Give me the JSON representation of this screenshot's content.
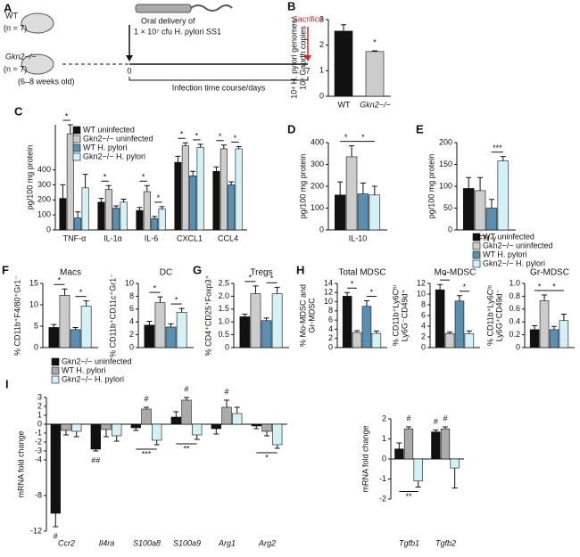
{
  "panel_a": {
    "panel": "A",
    "groups": [
      {
        "name": "WT",
        "n": "(n = 7)"
      },
      {
        "name": "Gkn2−/−",
        "n": "(n = 7)"
      }
    ],
    "age": "(6–8 weeks old)",
    "delivery": [
      "Oral delivery of",
      "1 × 10⁷ cfu H. pylori SS1"
    ],
    "sacrifice": "Sacrifice",
    "start": "0",
    "end": "7",
    "axis": "Infection time course/days"
  },
  "chart_data": [
    {
      "panel": "B",
      "type": "bar",
      "ylabel": [
        "10⁴ H. pylori genomes/",
        "10⁵ Gapdh copies"
      ],
      "categories": [
        "WT",
        "Gkn2−/−"
      ],
      "series": [
        {
          "color": "#111111",
          "values": [
            2.55,
            null
          ],
          "errors": [
            0.25,
            null
          ]
        },
        {
          "color": "#cccccc",
          "values": [
            null,
            1.75
          ],
          "errors": [
            null,
            0.03
          ]
        }
      ],
      "ylim": [
        0,
        3
      ],
      "yticks": [
        0,
        1,
        2,
        3
      ],
      "annotations": [
        "*"
      ]
    },
    {
      "panel": "C",
      "type": "bar",
      "ylabel": [
        "pg/100 mg protein"
      ],
      "categories": [
        "TNF-α",
        "IL-1α",
        "IL-6",
        "CXCL1",
        "CCL4"
      ],
      "legend": true,
      "series": [
        {
          "name": "WT uninfected",
          "color": "#111111",
          "values": [
            210,
            185,
            130,
            450,
            390
          ],
          "errors": [
            90,
            25,
            20,
            40,
            30
          ]
        },
        {
          "name": "Gkn2−/− uninfected",
          "color": "#cccccc",
          "values": [
            640,
            270,
            255,
            560,
            540
          ],
          "errors": [
            60,
            25,
            40,
            20,
            25
          ]
        },
        {
          "name": "WT H. pylori",
          "color": "#5b8fb0",
          "values": [
            80,
            145,
            75,
            360,
            300
          ],
          "errors": [
            40,
            15,
            15,
            30,
            20
          ]
        },
        {
          "name": "Gkn2−/− H. pylori",
          "color": "#d4f1f6",
          "values": [
            280,
            185,
            140,
            550,
            540
          ],
          "errors": [
            90,
            20,
            15,
            20,
            15
          ]
        }
      ],
      "ylim": [
        0,
        700
      ],
      "yticks": [
        0,
        100,
        200,
        300,
        400
      ],
      "annotations": [
        "*",
        "*",
        "*",
        "*",
        "*",
        "*",
        "*",
        "*"
      ]
    },
    {
      "panel": "D",
      "type": "bar",
      "ylabel": [
        "pg/100 mg protein"
      ],
      "categories": [
        "IL-10"
      ],
      "series": [
        {
          "color": "#111111",
          "values": [
            160
          ],
          "errors": [
            60
          ]
        },
        {
          "color": "#cccccc",
          "values": [
            335
          ],
          "errors": [
            50
          ]
        },
        {
          "color": "#5b8fb0",
          "values": [
            165
          ],
          "errors": [
            50
          ]
        },
        {
          "color": "#d4f1f6",
          "values": [
            160
          ],
          "errors": [
            40
          ]
        }
      ],
      "ylim": [
        0,
        400
      ],
      "yticks": [
        0,
        100,
        200,
        300,
        400
      ],
      "annotations": [
        "*",
        "*"
      ]
    },
    {
      "panel": "E",
      "type": "bar",
      "ylabel": [
        "pg/100 mg protein"
      ],
      "categories": [
        "IFN-γ"
      ],
      "series": [
        {
          "color": "#111111",
          "values": [
            95
          ],
          "errors": [
            25
          ]
        },
        {
          "color": "#cccccc",
          "values": [
            90
          ],
          "errors": [
            30
          ]
        },
        {
          "color": "#5b8fb0",
          "values": [
            50
          ],
          "errors": [
            20
          ]
        },
        {
          "color": "#d4f1f6",
          "values": [
            158
          ],
          "errors": [
            10
          ]
        }
      ],
      "ylim": [
        0,
        200
      ],
      "yticks": [
        0,
        50,
        100,
        150,
        200
      ],
      "annotations": [
        "***"
      ]
    },
    {
      "panel": "F",
      "type": "bar",
      "title": "Macs",
      "ylabel": [
        "% CD11b⁺F4/80⁺Gr1⁻"
      ],
      "series": [
        {
          "color": "#111111",
          "values": [
            4.7
          ],
          "errors": [
            0.7
          ]
        },
        {
          "color": "#cccccc",
          "values": [
            12.2
          ],
          "errors": [
            1.5
          ]
        },
        {
          "color": "#5b8fb0",
          "values": [
            4.2
          ],
          "errors": [
            0.5
          ]
        },
        {
          "color": "#d4f1f6",
          "values": [
            9.7
          ],
          "errors": [
            1.2
          ]
        }
      ],
      "ylim": [
        0,
        15
      ],
      "yticks": [
        0,
        5,
        10,
        15
      ],
      "annotations": [
        "*",
        "*"
      ]
    },
    {
      "type": "bar",
      "title": "DC",
      "ylabel": [
        "% CD11b⁺CD11c⁺Gr1⁻"
      ],
      "series": [
        {
          "color": "#111111",
          "values": [
            3.5
          ],
          "errors": [
            0.6
          ]
        },
        {
          "color": "#cccccc",
          "values": [
            7.0
          ],
          "errors": [
            0.9
          ]
        },
        {
          "color": "#5b8fb0",
          "values": [
            3.2
          ],
          "errors": [
            0.5
          ]
        },
        {
          "color": "#d4f1f6",
          "values": [
            5.5
          ],
          "errors": [
            0.6
          ]
        }
      ],
      "ylim": [
        0,
        10
      ],
      "yticks": [
        0,
        2,
        4,
        6,
        8,
        10
      ],
      "annotations": [
        "*",
        "*"
      ]
    },
    {
      "panel": "G",
      "type": "bar",
      "title": "Tregs",
      "ylabel": [
        "% CD4⁺CD25⁺Foxp3⁺"
      ],
      "series": [
        {
          "color": "#111111",
          "values": [
            1.2
          ],
          "errors": [
            0.1
          ]
        },
        {
          "color": "#cccccc",
          "values": [
            2.1
          ],
          "errors": [
            0.3
          ]
        },
        {
          "color": "#5b8fb0",
          "values": [
            1.05
          ],
          "errors": [
            0.1
          ]
        },
        {
          "color": "#d4f1f6",
          "values": [
            2.1
          ],
          "errors": [
            0.25
          ]
        }
      ],
      "ylim": [
        0,
        2.5
      ],
      "yticks": [
        0,
        0.5,
        {
          "value": 1,
          "label": "1.0"
        },
        1.5,
        {
          "value": 2,
          "label": "2.0"
        },
        2.5
      ],
      "annotations": [
        "*",
        "*"
      ]
    },
    {
      "panel": "H",
      "type": "bar",
      "title": "Total MDSC",
      "ylabel": [
        "% Mo-MDSC and",
        "Gr-MDSC"
      ],
      "legend": true,
      "series": [
        {
          "name": "WT uninfected",
          "color": "#111111",
          "values": [
            11.2
          ],
          "errors": [
            0.8
          ]
        },
        {
          "name": "Gkn2−/− uninfected",
          "color": "#cccccc",
          "values": [
            3.3
          ],
          "errors": [
            0.4
          ]
        },
        {
          "name": "WT H. pylori",
          "color": "#5b8fb0",
          "values": [
            9.0
          ],
          "errors": [
            1.2
          ]
        },
        {
          "name": "Gkn2−/− H. pylori",
          "color": "#d4f1f6",
          "values": [
            3.1
          ],
          "errors": [
            0.5
          ]
        }
      ],
      "ylim": [
        0,
        14
      ],
      "yticks": [
        0,
        2,
        4,
        6,
        8,
        10,
        12,
        14
      ],
      "annotations": [
        "*",
        "*"
      ]
    },
    {
      "type": "bar",
      "title": "Mo-MDSC",
      "ylabel": [
        "% CD11b⁺Ly6Cʰⁱ",
        "Ly6G⁻CD49d⁺"
      ],
      "series": [
        {
          "color": "#111111",
          "values": [
            10.8
          ],
          "errors": [
            1.0
          ]
        },
        {
          "color": "#cccccc",
          "values": [
            2.6
          ],
          "errors": [
            0.3
          ]
        },
        {
          "color": "#5b8fb0",
          "values": [
            8.7
          ],
          "errors": [
            1.0
          ]
        },
        {
          "color": "#d4f1f6",
          "values": [
            2.6
          ],
          "errors": [
            0.5
          ]
        }
      ],
      "ylim": [
        0,
        12
      ],
      "yticks": [
        0,
        2,
        4,
        6,
        8,
        10,
        12
      ],
      "annotations": [
        "*",
        "*"
      ]
    },
    {
      "type": "bar",
      "title": "Gr-MDSC",
      "ylabel": [
        "% CD11b⁺Ly6Cˡᵒ",
        "Ly6G⁺CD49d⁻"
      ],
      "series": [
        {
          "color": "#111111",
          "values": [
            0.28
          ],
          "errors": [
            0.06
          ]
        },
        {
          "color": "#cccccc",
          "values": [
            0.73
          ],
          "errors": [
            0.09
          ]
        },
        {
          "color": "#5b8fb0",
          "values": [
            0.28
          ],
          "errors": [
            0.05
          ]
        },
        {
          "color": "#d4f1f6",
          "values": [
            0.42
          ],
          "errors": [
            0.1
          ]
        }
      ],
      "ylim": [
        0,
        1
      ],
      "yticks": [
        0,
        0.2,
        0.4,
        0.6,
        0.8,
        {
          "value": 1,
          "label": "1.0"
        }
      ],
      "annotations": [
        "*",
        "*"
      ]
    },
    {
      "panel": "I",
      "type": "bar",
      "ylabel": [
        "mRNA fold change"
      ],
      "categories": [
        "Ccr2",
        "Il4ra",
        "S100a8",
        "S100a9",
        "Arg1",
        "Arg2"
      ],
      "legend": true,
      "series": [
        {
          "name": "Gkn2−/− uninfected",
          "color": "#111111",
          "values": [
            -10,
            -2.8,
            -0.4,
            0.8,
            -0.5,
            -0.2
          ],
          "errors": [
            1.5,
            0.2,
            0.3,
            0.6,
            0.6,
            0.3
          ]
        },
        {
          "name": "WT H. pylori",
          "color": "#aaaaaa",
          "values": [
            -0.7,
            -0.6,
            1.7,
            2.7,
            1.9,
            -0.8
          ],
          "errors": [
            0.5,
            0.8,
            0.2,
            0.3,
            0.8,
            0.5
          ]
        },
        {
          "name": "Gkn2−/− H. pylori",
          "color": "#d4f1f6",
          "values": [
            -0.8,
            -1.3,
            -1.8,
            -1.2,
            1.2,
            -2.3
          ],
          "errors": [
            0.6,
            0.6,
            0.5,
            0.5,
            0.7,
            0.4
          ]
        }
      ],
      "ylim": [
        -12,
        3
      ],
      "yticks": [
        -12,
        -8,
        -4,
        -3,
        -2,
        -1,
        0,
        1,
        2,
        3
      ],
      "annotations": [
        "#",
        "##",
        "#",
        "***",
        "#",
        "**",
        "#",
        "*"
      ]
    },
    {
      "type": "bar",
      "ylabel": [
        "mRNA fold change"
      ],
      "categories": [
        "Tgfb1",
        "Tgfb2"
      ],
      "series": [
        {
          "color": "#111111",
          "values": [
            0.5,
            1.35
          ],
          "errors": [
            0.3,
            0.1
          ]
        },
        {
          "color": "#aaaaaa",
          "values": [
            1.5,
            1.5
          ],
          "errors": [
            0.1,
            0.1
          ]
        },
        {
          "color": "#d4f1f6",
          "values": [
            -1.1,
            -0.45
          ],
          "errors": [
            0.3,
            1.0
          ]
        }
      ],
      "ylim": [
        -2,
        2
      ],
      "yticks": [
        -2,
        -1,
        0,
        1,
        2
      ],
      "annotations": [
        "#",
        "#",
        "#",
        "**"
      ]
    }
  ]
}
